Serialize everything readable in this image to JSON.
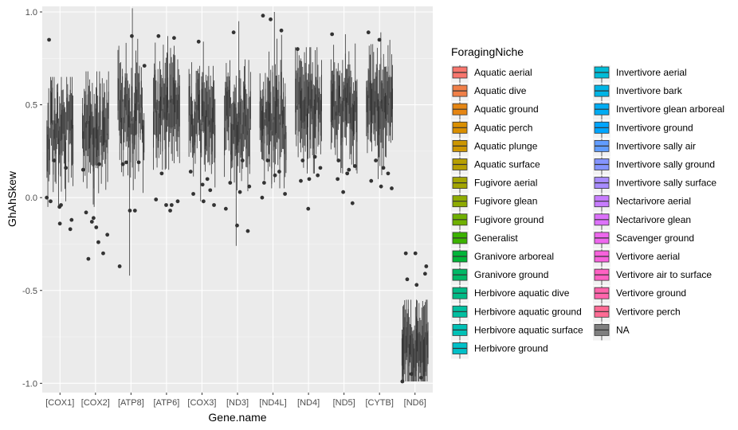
{
  "chart_data": {
    "type": "box",
    "xlabel": "Gene.name",
    "ylabel": "GhAhSkew",
    "ylim": [
      -1.05,
      1.03
    ],
    "yticks": [
      -1.0,
      -0.5,
      0.0,
      0.5,
      1.0
    ],
    "ytick_labels": [
      "-1.0",
      "-0.5",
      "0.0",
      "0.5",
      "1.0"
    ],
    "categories": [
      "[COX1]",
      "[COX2]",
      "[ATP8]",
      "[ATP6]",
      "[COX3]",
      "[ND3]",
      "[ND4L]",
      "[ND4]",
      "[ND5]",
      "[CYTB]",
      "[ND6]"
    ],
    "grid": true,
    "legend": {
      "title": "ForagingNiche",
      "position": "right",
      "entries": [
        {
          "label": "Aquatic aerial",
          "color": "#F8766D"
        },
        {
          "label": "Aquatic dive",
          "color": "#F07F47"
        },
        {
          "label": "Aquatic ground",
          "color": "#E68613"
        },
        {
          "label": "Aquatic perch",
          "color": "#DA8F00"
        },
        {
          "label": "Aquatic plunge",
          "color": "#CD9600"
        },
        {
          "label": "Aquatic surface",
          "color": "#B79F00"
        },
        {
          "label": "Fugivore aerial",
          "color": "#A3A500"
        },
        {
          "label": "Fugivore glean",
          "color": "#8EAB00"
        },
        {
          "label": "Fugivore ground",
          "color": "#6FB000"
        },
        {
          "label": "Generalist",
          "color": "#3BB300"
        },
        {
          "label": "Granivore arboreal",
          "color": "#00B538"
        },
        {
          "label": "Granivore ground",
          "color": "#00B866"
        },
        {
          "label": "Herbivore aquatic dive",
          "color": "#00BB87"
        },
        {
          "label": "Herbivore aquatic ground",
          "color": "#00BFA0"
        },
        {
          "label": "Herbivore aquatic surface",
          "color": "#00C1B6"
        },
        {
          "label": "Herbivore ground",
          "color": "#00C0C8"
        },
        {
          "label": "Invertivore aerial",
          "color": "#00BCD8"
        },
        {
          "label": "Invertivore bark",
          "color": "#00B5E6"
        },
        {
          "label": "Invertivore glean arboreal",
          "color": "#00ACF3"
        },
        {
          "label": "Invertivore ground",
          "color": "#00A5FF"
        },
        {
          "label": "Invertivore sally air",
          "color": "#619CFF"
        },
        {
          "label": "Invertivore sally ground",
          "color": "#8494FF"
        },
        {
          "label": "Invertivore sally surface",
          "color": "#A78BFF"
        },
        {
          "label": "Nectarivore aerial",
          "color": "#C77CFF"
        },
        {
          "label": "Nectarivore glean",
          "color": "#DC71FA"
        },
        {
          "label": "Scavenger ground",
          "color": "#EE67EE"
        },
        {
          "label": "Vertivore aerial",
          "color": "#F762DC"
        },
        {
          "label": "Vertivore air to surface",
          "color": "#FF61C3"
        },
        {
          "label": "Vertivore ground",
          "color": "#FF65AC"
        },
        {
          "label": "Vertivore perch",
          "color": "#FF6B94"
        },
        {
          "label": "NA",
          "color": "#7F7F7F"
        }
      ]
    },
    "distributions": [
      {
        "category": "[COX1]",
        "center": 0.36,
        "spread": 0.14,
        "min": -0.05,
        "max": 0.65,
        "outliers": [
          0.85,
          -0.14,
          -0.17,
          -0.02,
          -0.04,
          -0.12,
          0.2,
          0.16,
          0.0,
          -0.05
        ]
      },
      {
        "category": "[COX2]",
        "center": 0.38,
        "spread": 0.14,
        "min": -0.05,
        "max": 0.68,
        "outliers": [
          -0.08,
          -0.16,
          -0.3,
          -0.33,
          -0.24,
          -0.2,
          -0.13,
          0.18,
          0.15,
          -0.11
        ]
      },
      {
        "category": "[ATP8]",
        "center": 0.44,
        "spread": 0.17,
        "min": -0.42,
        "max": 1.02,
        "outliers": [
          -0.37,
          -0.07,
          0.19,
          0.18,
          0.87,
          0.71,
          0.19,
          -0.07
        ]
      },
      {
        "category": "[ATP6]",
        "center": 0.46,
        "spread": 0.12,
        "min": 0.15,
        "max": 0.87,
        "outliers": [
          -0.01,
          -0.04,
          0.86,
          0.87,
          -0.07,
          -0.02,
          0.13,
          -0.04
        ]
      },
      {
        "category": "[COX3]",
        "center": 0.42,
        "spread": 0.13,
        "min": -0.02,
        "max": 0.84,
        "outliers": [
          0.14,
          0.07,
          0.04,
          0.02,
          -0.02,
          -0.04,
          0.84,
          0.1
        ]
      },
      {
        "category": "[ND3]",
        "center": 0.43,
        "spread": 0.17,
        "min": -0.26,
        "max": 0.95,
        "outliers": [
          -0.06,
          -0.15,
          -0.18,
          0.08,
          0.03,
          0.06,
          0.89,
          0.2
        ]
      },
      {
        "category": "[ND4L]",
        "center": 0.42,
        "spread": 0.16,
        "min": 0.05,
        "max": 1.0,
        "outliers": [
          0.98,
          0.96,
          0.9,
          0.08,
          0.12,
          0.02,
          0.2,
          0.14,
          0.0
        ]
      },
      {
        "category": "[ND4]",
        "center": 0.48,
        "spread": 0.12,
        "min": 0.13,
        "max": 0.81,
        "outliers": [
          0.8,
          -0.06,
          0.12,
          0.09,
          0.1,
          0.16,
          0.2,
          0.22
        ]
      },
      {
        "category": "[ND5]",
        "center": 0.49,
        "spread": 0.11,
        "min": 0.13,
        "max": 0.88,
        "outliers": [
          0.88,
          0.03,
          -0.03,
          0.1,
          0.13,
          0.17,
          0.2,
          0.15
        ]
      },
      {
        "category": "[CYTB]",
        "center": 0.51,
        "spread": 0.11,
        "min": 0.1,
        "max": 0.89,
        "outliers": [
          0.89,
          0.85,
          0.13,
          0.09,
          0.06,
          0.05,
          0.2,
          0.16
        ]
      },
      {
        "category": "[ND6]",
        "center": -0.8,
        "spread": 0.09,
        "min": -0.99,
        "max": -0.55,
        "outliers": [
          -0.3,
          -0.3,
          -0.41,
          -0.44,
          -0.47,
          -0.37,
          -0.95,
          -0.97,
          -0.99
        ]
      }
    ]
  }
}
